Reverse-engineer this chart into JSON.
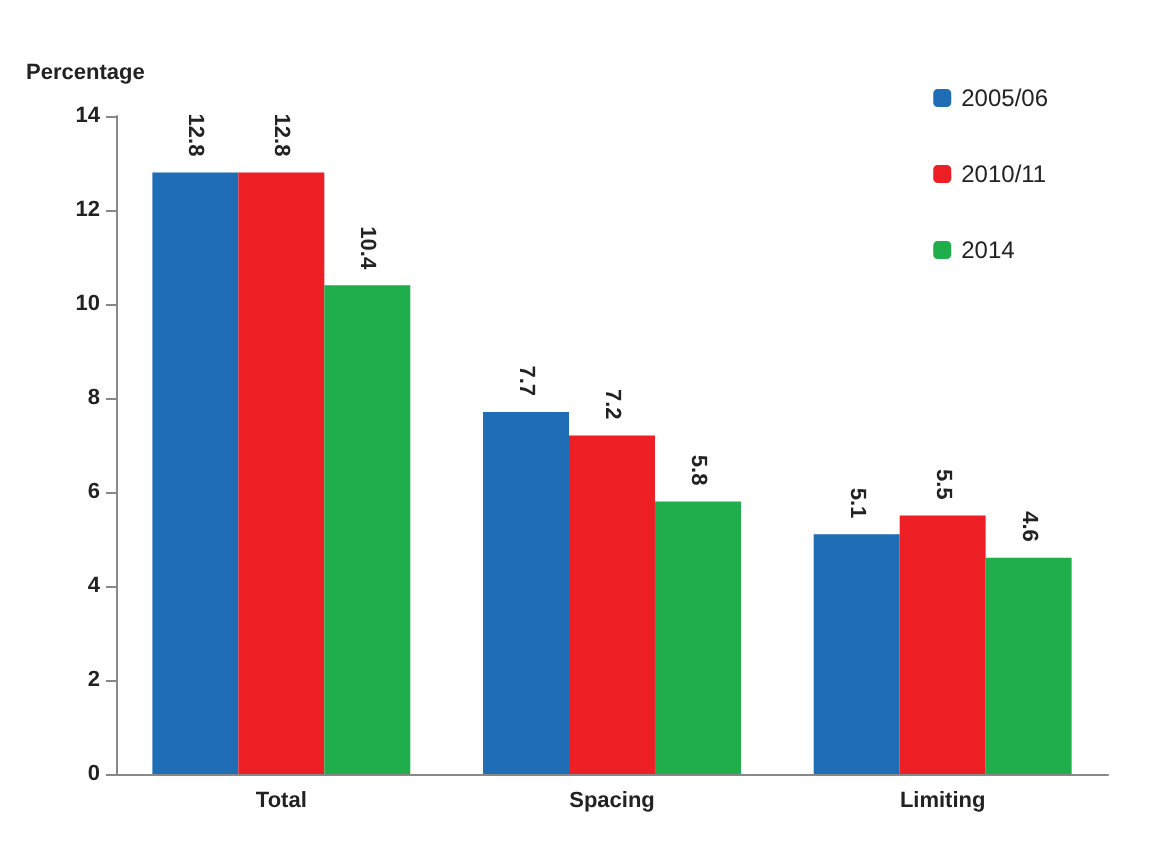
{
  "chart_data": {
    "type": "bar",
    "ylabel": "Percentage",
    "categories": [
      "Total",
      "Spacing",
      "Limiting"
    ],
    "series": [
      {
        "name": "2005/06",
        "color": "#1f6db5",
        "values": [
          12.8,
          7.7,
          5.1
        ]
      },
      {
        "name": "2010/11",
        "color": "#ee1f24",
        "values": [
          12.8,
          7.2,
          5.5
        ]
      },
      {
        "name": "2014",
        "color": "#1fae4b",
        "values": [
          10.4,
          5.8,
          4.6
        ]
      }
    ],
    "ylim": [
      0,
      14
    ],
    "yticks": [
      0,
      2,
      4,
      6,
      8,
      10,
      12,
      14
    ],
    "grid": false,
    "legend": "top right",
    "data_labels": true
  }
}
